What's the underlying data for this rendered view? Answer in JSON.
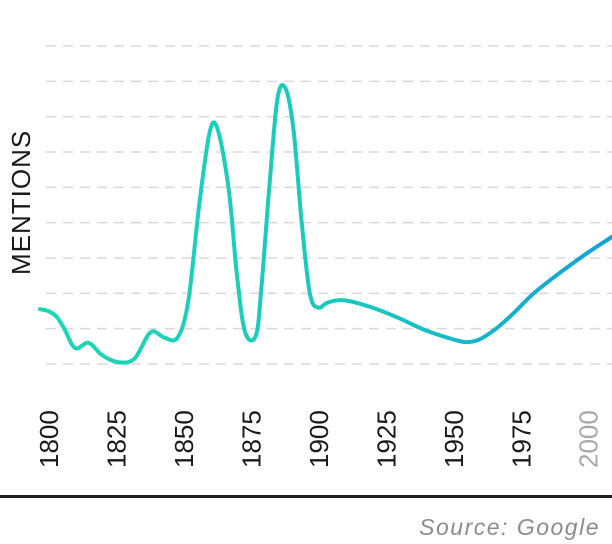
{
  "chart_data": {
    "type": "line",
    "ylabel": "MENTIONS",
    "xlabel": "",
    "x_ticks": [
      "1800",
      "1825",
      "1850",
      "1875",
      "1900",
      "1925",
      "1950",
      "1975",
      "2000"
    ],
    "xlim": [
      1797,
      2009
    ],
    "ylim": [
      0,
      9
    ],
    "grid": true,
    "series": [
      {
        "x": [
          1797,
          1800,
          1803,
          1806,
          1810,
          1815,
          1820,
          1826,
          1832,
          1838,
          1843,
          1848,
          1852,
          1856,
          1860,
          1863,
          1867,
          1870,
          1873,
          1877,
          1879,
          1882,
          1885,
          1888,
          1891,
          1894,
          1897,
          1900,
          1904,
          1910,
          1920,
          1930,
          1940,
          1950,
          1955,
          1960,
          1966,
          1972,
          1980,
          1990,
          2000,
          2009
        ],
        "y": [
          1.55,
          1.5,
          1.35,
          1.0,
          0.45,
          0.6,
          0.25,
          0.05,
          0.15,
          0.9,
          0.75,
          0.75,
          1.8,
          4.5,
          6.6,
          6.6,
          4.9,
          2.5,
          0.9,
          0.8,
          2.1,
          5.0,
          7.5,
          7.8,
          6.6,
          4.0,
          2.0,
          1.6,
          1.75,
          1.8,
          1.6,
          1.3,
          0.95,
          0.7,
          0.62,
          0.7,
          1.0,
          1.4,
          2.0,
          2.6,
          3.15,
          3.6
        ]
      }
    ],
    "gradient_colors": [
      "#1dd7b4",
      "#14a2d6"
    ]
  },
  "source": "Source: Google"
}
